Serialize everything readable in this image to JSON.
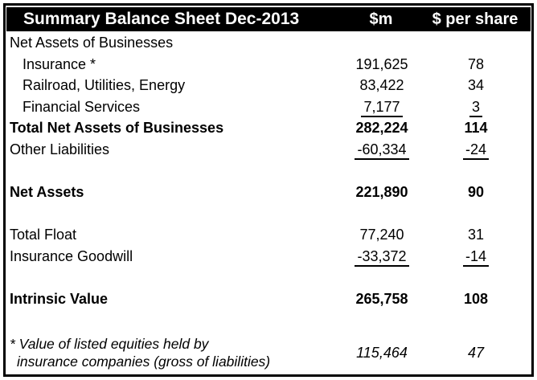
{
  "header": {
    "title": "Summary Balance Sheet Dec-2013",
    "col_m": "$m",
    "col_per_share": "$ per share"
  },
  "rows": [
    {
      "label": "Net Assets of Businesses",
      "m": "",
      "per_share": ""
    },
    {
      "label": "Insurance *",
      "m": "191,625",
      "per_share": "78"
    },
    {
      "label": "Railroad, Utilities, Energy",
      "m": "83,422",
      "per_share": "34"
    },
    {
      "label": "Financial Services",
      "m": "7,177",
      "per_share": "3"
    },
    {
      "label": "Total Net Assets of Businesses",
      "m": "282,224",
      "per_share": "114"
    },
    {
      "label": "Other Liabilities",
      "m": "-60,334",
      "per_share": "-24"
    },
    {
      "label": "",
      "m": "",
      "per_share": ""
    },
    {
      "label": "Net Assets",
      "m": "221,890",
      "per_share": "90"
    },
    {
      "label": "",
      "m": "",
      "per_share": ""
    },
    {
      "label": "Total Float",
      "m": "77,240",
      "per_share": "31"
    },
    {
      "label": "Insurance Goodwill",
      "m": "-33,372",
      "per_share": "-14"
    },
    {
      "label": "",
      "m": "",
      "per_share": ""
    },
    {
      "label": "Intrinsic Value",
      "m": "265,758",
      "per_share": "108"
    },
    {
      "label": "",
      "m": "",
      "per_share": ""
    }
  ],
  "footnote": {
    "line1": "* Value of listed equities held by",
    "line2": "insurance companies (gross of liabilities)",
    "m": "115,464",
    "per_share": "47"
  },
  "colors": {
    "header_bg": "#000000",
    "header_text": "#ffffff",
    "body_text": "#000000",
    "border": "#000000",
    "background": "#ffffff"
  }
}
